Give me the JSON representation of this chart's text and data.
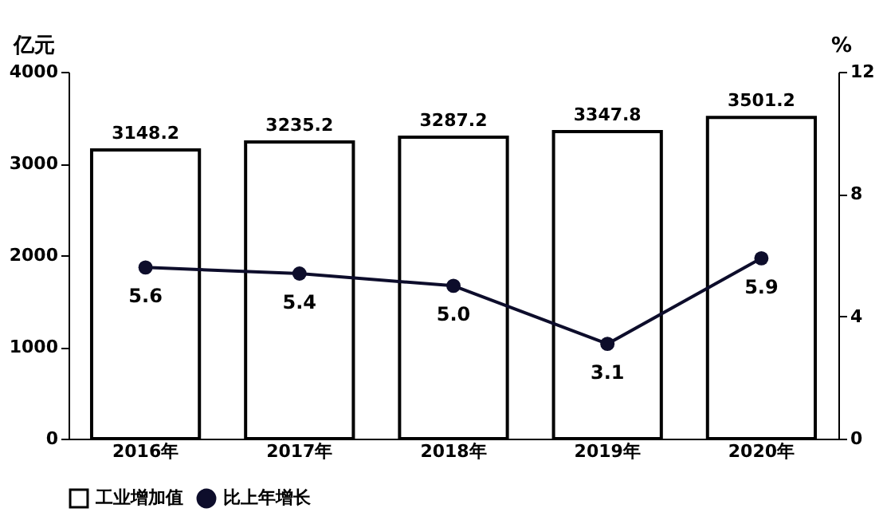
{
  "chart_data": {
    "type": "bar",
    "categories": [
      "2016年",
      "2017年",
      "2018年",
      "2019年",
      "2020年"
    ],
    "series": [
      {
        "name": "工业增加值",
        "color": "#ffffff",
        "values": [
          3148.2,
          3235.2,
          3287.2,
          3347.8,
          3501.2
        ]
      },
      {
        "name": "比上年增长",
        "type": "line",
        "axis": "y2",
        "color": "#0d0d2b",
        "values": [
          5.6,
          5.4,
          5.0,
          3.1,
          5.9
        ],
        "value_labels": [
          "5.6",
          "5.4",
          "5.0",
          "3.1",
          "5.9"
        ]
      }
    ],
    "ylabel": "亿元",
    "y2label": "%",
    "ylim": [
      0,
      4000
    ],
    "yticks": [
      0,
      1000,
      2000,
      3000,
      4000
    ],
    "y2lim": [
      0,
      12
    ],
    "y2ticks": [
      0,
      4,
      8,
      12
    ],
    "data_labels": true,
    "legend": "bottom",
    "marker": "circle",
    "grid": false
  }
}
